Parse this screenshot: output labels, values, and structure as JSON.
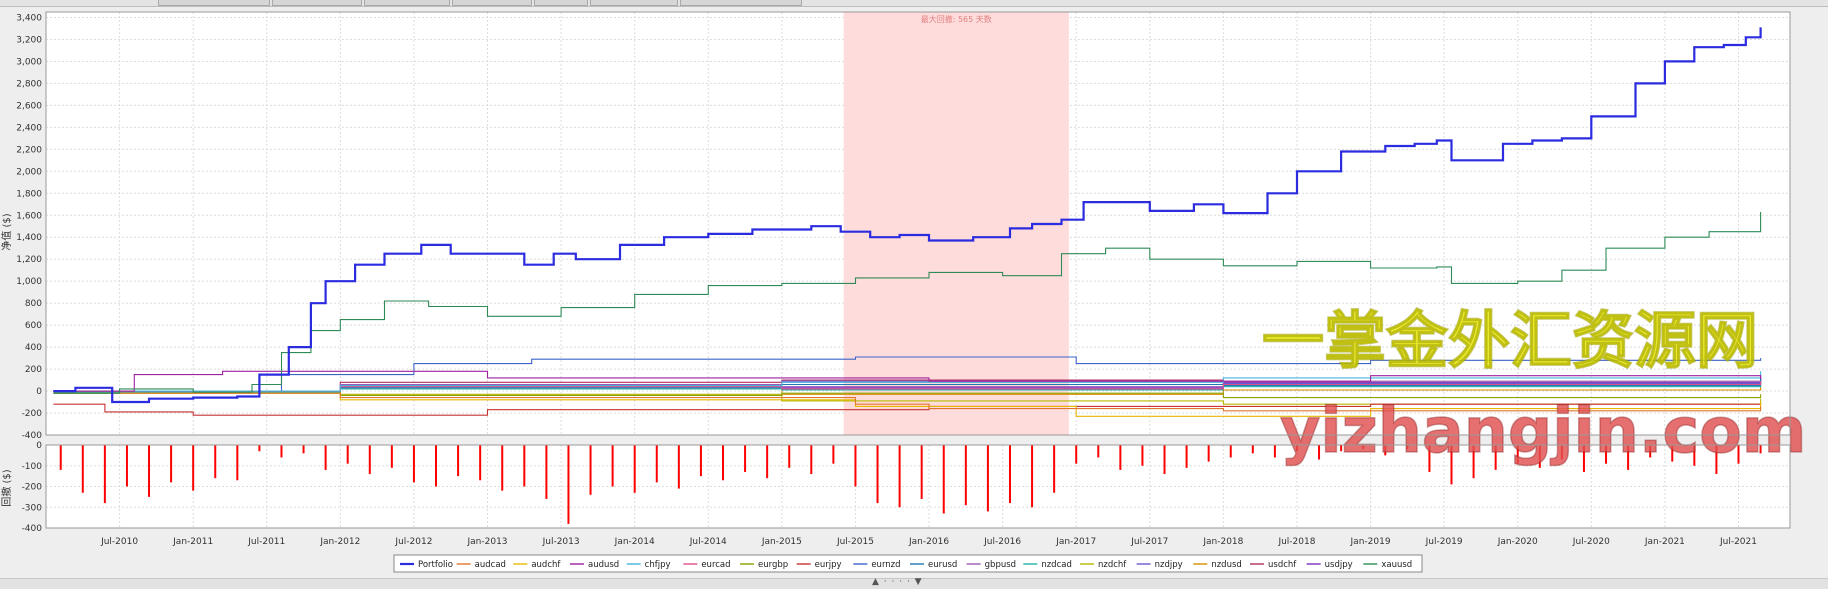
{
  "chart_data": [
    {
      "type": "line",
      "panel": "equity",
      "ylabel": "净值 ($)",
      "ylim": [
        -400,
        3450
      ],
      "yticks": [
        -400,
        -200,
        0,
        200,
        400,
        600,
        800,
        1000,
        1200,
        1400,
        1600,
        1800,
        2000,
        2200,
        2400,
        2600,
        2800,
        3000,
        3200,
        3400
      ],
      "ytick_labels": [
        "-400",
        "-200",
        "0",
        "200",
        "400",
        "600",
        "800",
        "1,000",
        "1,200",
        "1,400",
        "1,600",
        "1,800",
        "2,000",
        "2,200",
        "2,400",
        "2,600",
        "2,800",
        "3,000",
        "3,200",
        "3,400"
      ],
      "xlim": [
        2010.0,
        2021.85
      ],
      "x_ticks": [
        2010.5,
        2011.0,
        2011.5,
        2012.0,
        2012.5,
        2013.0,
        2013.5,
        2014.0,
        2014.5,
        2015.0,
        2015.5,
        2016.0,
        2016.5,
        2017.0,
        2017.5,
        2018.0,
        2018.5,
        2019.0,
        2019.5,
        2020.0,
        2020.5,
        2021.0,
        2021.5
      ],
      "x_tick_labels": [
        "Jul-2010",
        "Jan-2011",
        "Jul-2011",
        "Jan-2012",
        "Jul-2012",
        "Jan-2013",
        "Jul-2013",
        "Jan-2014",
        "Jul-2014",
        "Jan-2015",
        "Jul-2015",
        "Jan-2016",
        "Jul-2016",
        "Jan-2017",
        "Jul-2017",
        "Jan-2018",
        "Jul-2018",
        "Jan-2019",
        "Jul-2019",
        "Jan-2020",
        "Jul-2020",
        "Jan-2021",
        "Jul-2021"
      ],
      "grid": true,
      "shaded_region": {
        "x": [
          2015.42,
          2016.95
        ],
        "label": "最大回撤: 565 天数",
        "color": "#ffdcdc"
      },
      "series": [
        {
          "name": "Portfolio",
          "color": "#2b2be0",
          "x": [
            2010.05,
            2010.2,
            2010.45,
            2010.7,
            2011.0,
            2011.3,
            2011.45,
            2011.65,
            2011.8,
            2011.9,
            2012.1,
            2012.3,
            2012.55,
            2012.75,
            2013.0,
            2013.25,
            2013.45,
            2013.6,
            2013.9,
            2014.2,
            2014.5,
            2014.8,
            2015.0,
            2015.2,
            2015.4,
            2015.6,
            2015.8,
            2016.0,
            2016.3,
            2016.55,
            2016.7,
            2016.9,
            2017.05,
            2017.2,
            2017.5,
            2017.8,
            2018.0,
            2018.3,
            2018.5,
            2018.8,
            2019.1,
            2019.3,
            2019.45,
            2019.55,
            2019.9,
            2020.1,
            2020.3,
            2020.5,
            2020.8,
            2021.0,
            2021.2,
            2021.4,
            2021.55,
            2021.65
          ],
          "values": [
            0,
            30,
            -100,
            -70,
            -60,
            -50,
            150,
            400,
            800,
            1000,
            1150,
            1250,
            1330,
            1250,
            1250,
            1150,
            1250,
            1200,
            1330,
            1400,
            1430,
            1470,
            1470,
            1500,
            1450,
            1400,
            1420,
            1370,
            1400,
            1480,
            1520,
            1560,
            1720,
            1720,
            1640,
            1700,
            1620,
            1800,
            2000,
            2180,
            2230,
            2250,
            2280,
            2100,
            2250,
            2280,
            2300,
            2500,
            2800,
            3000,
            3130,
            3150,
            3220,
            3310
          ]
        },
        {
          "name": "xauusd",
          "color": "#2e8b57",
          "x": [
            2010.05,
            2010.5,
            2011.0,
            2011.4,
            2011.6,
            2011.8,
            2012.0,
            2012.3,
            2012.6,
            2013.0,
            2013.5,
            2014.0,
            2014.5,
            2015.0,
            2015.5,
            2016.0,
            2016.5,
            2016.9,
            2017.2,
            2017.5,
            2018.0,
            2018.5,
            2019.0,
            2019.45,
            2019.55,
            2020.0,
            2020.3,
            2020.6,
            2021.0,
            2021.3,
            2021.65
          ],
          "values": [
            -20,
            20,
            -10,
            60,
            350,
            550,
            650,
            820,
            770,
            680,
            760,
            880,
            960,
            980,
            1030,
            1080,
            1050,
            1250,
            1300,
            1200,
            1140,
            1180,
            1120,
            1130,
            980,
            1000,
            1100,
            1300,
            1400,
            1450,
            1630
          ]
        },
        {
          "name": "audcad",
          "color": "#e0762d",
          "x": [
            2010.05,
            2012.0,
            2015.5,
            2016.0,
            2018.0,
            2021.65
          ],
          "values": [
            -20,
            -60,
            -120,
            -160,
            -180,
            -140
          ]
        },
        {
          "name": "audchf",
          "color": "#e6b800",
          "x": [
            2010.05,
            2012.0,
            2015.5,
            2017.0,
            2019.0,
            2021.65
          ],
          "values": [
            -20,
            -80,
            -140,
            -230,
            -160,
            -100
          ]
        },
        {
          "name": "audusd",
          "color": "#a020a0",
          "x": [
            2010.05,
            2010.6,
            2011.2,
            2013.0,
            2016.0,
            2019.0,
            2021.65
          ],
          "values": [
            0,
            150,
            180,
            120,
            90,
            140,
            110
          ]
        },
        {
          "name": "chfjpy",
          "color": "#46b4dc",
          "x": [
            2010.05,
            2012.0,
            2015.0,
            2018.0,
            2021.65
          ],
          "values": [
            0,
            50,
            80,
            120,
            180
          ]
        },
        {
          "name": "eurcad",
          "color": "#e0508c",
          "x": [
            2010.05,
            2012.0,
            2015.0,
            2018.0,
            2021.65
          ],
          "values": [
            0,
            40,
            20,
            60,
            90
          ]
        },
        {
          "name": "eurgbp",
          "color": "#8ca000",
          "x": [
            2010.05,
            2012.0,
            2015.0,
            2018.0,
            2021.65
          ],
          "values": [
            0,
            -40,
            -20,
            -60,
            -30
          ]
        },
        {
          "name": "eurjpy",
          "color": "#c83232",
          "x": [
            2010.05,
            2010.4,
            2011.0,
            2013.0,
            2016.0,
            2019.0,
            2021.65
          ],
          "values": [
            -120,
            -190,
            -220,
            -170,
            -140,
            -120,
            -110
          ]
        },
        {
          "name": "eurnzd",
          "color": "#3c64c8",
          "x": [
            2010.05,
            2011.6,
            2012.5,
            2013.3,
            2015.5,
            2017.0,
            2019.0,
            2021.65
          ],
          "values": [
            0,
            150,
            250,
            290,
            310,
            250,
            280,
            300
          ]
        },
        {
          "name": "eurusd",
          "color": "#1e78b4",
          "x": [
            2010.05,
            2012.0,
            2015.0,
            2018.0,
            2021.65
          ],
          "values": [
            0,
            30,
            60,
            50,
            120
          ]
        },
        {
          "name": "gbpusd",
          "color": "#9b59b6",
          "x": [
            2010.05,
            2012.0,
            2015.0,
            2018.0,
            2021.65
          ],
          "values": [
            0,
            60,
            40,
            90,
            150
          ]
        },
        {
          "name": "nzdcad",
          "color": "#20b2aa",
          "x": [
            2010.05,
            2012.0,
            2015.0,
            2018.0,
            2021.65
          ],
          "values": [
            -10,
            20,
            10,
            40,
            70
          ]
        },
        {
          "name": "nzdchf",
          "color": "#b8b800",
          "x": [
            2010.05,
            2012.0,
            2015.0,
            2018.0,
            2021.65
          ],
          "values": [
            -20,
            -30,
            -90,
            -120,
            -70
          ]
        },
        {
          "name": "nzdjpy",
          "color": "#6a5acd",
          "x": [
            2010.05,
            2012.0,
            2015.0,
            2018.0,
            2021.65
          ],
          "values": [
            0,
            40,
            90,
            70,
            130
          ]
        },
        {
          "name": "nzdusd",
          "color": "#d98c00",
          "x": [
            2010.05,
            2012.0,
            2015.0,
            2018.0,
            2021.65
          ],
          "values": [
            0,
            20,
            -30,
            10,
            40
          ]
        },
        {
          "name": "usdchf",
          "color": "#b03060",
          "x": [
            2010.05,
            2012.0,
            2015.0,
            2018.0,
            2021.65
          ],
          "values": [
            0,
            80,
            100,
            70,
            120
          ]
        },
        {
          "name": "usdjpy",
          "color": "#7b2fbe",
          "x": [
            2010.05,
            2012.0,
            2015.0,
            2018.0,
            2021.65
          ],
          "values": [
            0,
            50,
            30,
            80,
            60
          ]
        }
      ]
    },
    {
      "type": "bar",
      "panel": "drawdown",
      "ylabel": "回撤 ($)",
      "ylim": [
        -400,
        0
      ],
      "yticks": [
        -400,
        -300,
        -200,
        -100,
        0
      ],
      "ytick_labels": [
        "-400",
        "-300",
        "-200",
        "-100",
        "0"
      ],
      "color": "#ff0000",
      "x": [
        2010.1,
        2010.25,
        2010.4,
        2010.55,
        2010.7,
        2010.85,
        2011.0,
        2011.15,
        2011.3,
        2011.45,
        2011.6,
        2011.75,
        2011.9,
        2012.05,
        2012.2,
        2012.35,
        2012.5,
        2012.65,
        2012.8,
        2012.95,
        2013.1,
        2013.25,
        2013.4,
        2013.55,
        2013.7,
        2013.85,
        2014.0,
        2014.15,
        2014.3,
        2014.45,
        2014.6,
        2014.75,
        2014.9,
        2015.05,
        2015.2,
        2015.35,
        2015.5,
        2015.65,
        2015.8,
        2015.95,
        2016.1,
        2016.25,
        2016.4,
        2016.55,
        2016.7,
        2016.85,
        2017.0,
        2017.15,
        2017.3,
        2017.45,
        2017.6,
        2017.75,
        2017.9,
        2018.05,
        2018.2,
        2018.35,
        2018.5,
        2018.65,
        2018.8,
        2018.95,
        2019.1,
        2019.25,
        2019.4,
        2019.55,
        2019.7,
        2019.85,
        2020.0,
        2020.15,
        2020.3,
        2020.45,
        2020.6,
        2020.75,
        2020.9,
        2021.05,
        2021.2,
        2021.35,
        2021.5,
        2021.65
      ],
      "values": [
        -120,
        -230,
        -280,
        -200,
        -250,
        -180,
        -220,
        -160,
        -170,
        -30,
        -60,
        -40,
        -120,
        -90,
        -140,
        -110,
        -180,
        -200,
        -150,
        -170,
        -220,
        -200,
        -260,
        -380,
        -240,
        -200,
        -230,
        -180,
        -210,
        -150,
        -170,
        -130,
        -160,
        -110,
        -140,
        -90,
        -200,
        -280,
        -300,
        -260,
        -330,
        -290,
        -320,
        -280,
        -300,
        -230,
        -90,
        -60,
        -120,
        -100,
        -140,
        -110,
        -80,
        -60,
        -40,
        -60,
        -30,
        -70,
        -30,
        -20,
        -50,
        -20,
        -130,
        -190,
        -160,
        -120,
        -90,
        -110,
        -70,
        -130,
        -90,
        -120,
        -60,
        -80,
        -100,
        -140,
        -90,
        -40
      ]
    }
  ],
  "legend": {
    "items": [
      "Portfolio",
      "audcad",
      "audchf",
      "audusd",
      "chfjpy",
      "eurcad",
      "eurgbp",
      "eurjpy",
      "eurnzd",
      "eurusd",
      "gbpusd",
      "nzdcad",
      "nzdchf",
      "nzdjpy",
      "nzdusd",
      "usdchf",
      "usdjpy",
      "xauusd"
    ],
    "placement": "bottom-center"
  },
  "watermark": {
    "line1": "一掌金外汇资源网",
    "line2": "yizhangjin.com"
  },
  "splitter": {
    "grip": "▲ · · · · ▼"
  }
}
